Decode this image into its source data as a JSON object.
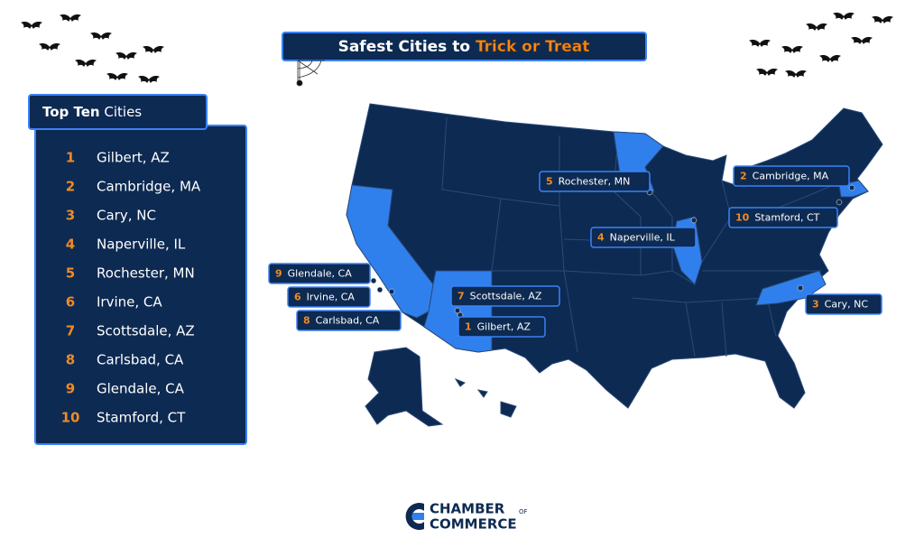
{
  "title": {
    "prefix": "Safest Cities to",
    "highlight": "Trick or Treat"
  },
  "list": {
    "heading_bold": "Top Ten",
    "heading_rest": "Cities",
    "items": [
      {
        "rank": 1,
        "city": "Gilbert, AZ"
      },
      {
        "rank": 2,
        "city": "Cambridge, MA"
      },
      {
        "rank": 3,
        "city": "Cary, NC"
      },
      {
        "rank": 4,
        "city": "Naperville, IL"
      },
      {
        "rank": 5,
        "city": "Rochester, MN"
      },
      {
        "rank": 6,
        "city": "Irvine, CA"
      },
      {
        "rank": 7,
        "city": "Scottsdale, AZ"
      },
      {
        "rank": 8,
        "city": "Carlsbad, CA"
      },
      {
        "rank": 9,
        "city": "Glendale, CA"
      },
      {
        "rank": 10,
        "city": "Stamford, CT"
      }
    ]
  },
  "logo": {
    "line1": "CHAMBER",
    "of": "OF",
    "line2": "COMMERCE"
  }
}
